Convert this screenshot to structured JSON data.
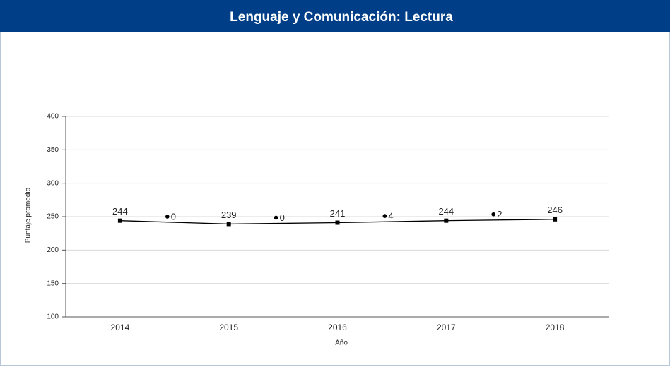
{
  "chart_data": {
    "type": "line",
    "title": "Lenguaje y Comunicación: Lectura",
    "x_label": "Año",
    "y_label": "Puntaje promedio",
    "categories": [
      "2014",
      "2015",
      "2016",
      "2017",
      "2018"
    ],
    "values": [
      244,
      239,
      241,
      244,
      246
    ],
    "color": "#000000",
    "annotations": [
      "0",
      "0",
      "4",
      "2"
    ],
    "ylim": [
      100,
      400
    ],
    "yticks": [
      100,
      150,
      200,
      250,
      300,
      350,
      400
    ],
    "grid": true
  }
}
